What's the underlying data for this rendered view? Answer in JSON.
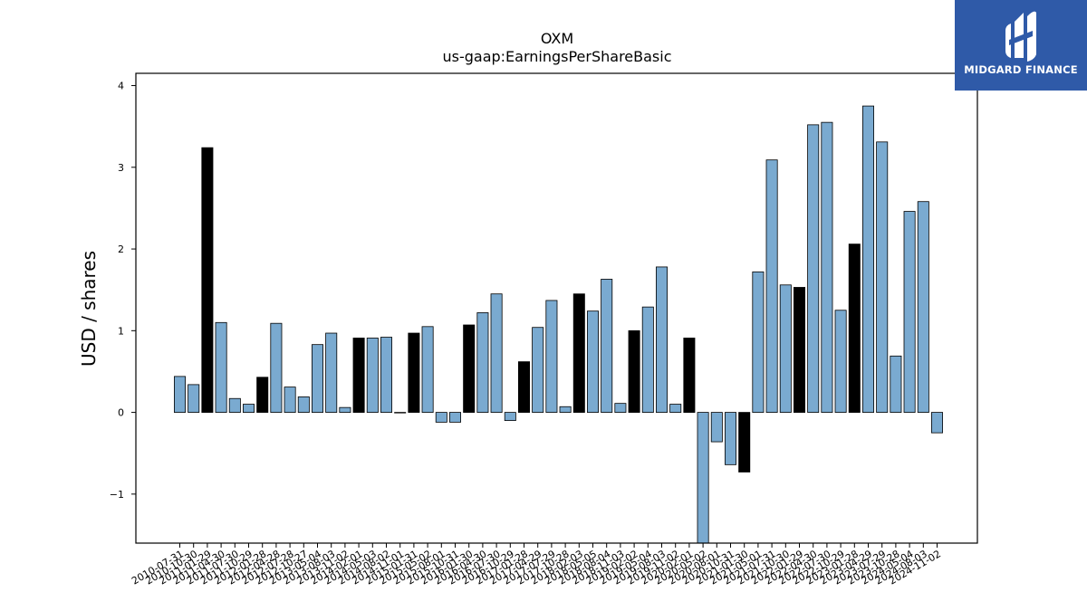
{
  "chart_data": {
    "type": "bar",
    "title": "OXM",
    "subtitle": "us-gaap:EarningsPerShareBasic",
    "ylabel": "USD / shares",
    "xlabel": "",
    "ylim": [
      -1.6,
      4.15
    ],
    "yticks": [
      -1,
      0,
      1,
      2,
      3,
      4
    ],
    "grid": false,
    "colors": {
      "quarter": "#7aaad0",
      "annual": "#000000",
      "edge": "#000000"
    },
    "bars": [
      {
        "label": "2010-07-31",
        "value": 0.44,
        "kind": "quarter"
      },
      {
        "label": "2010-10-30",
        "value": 0.34,
        "kind": "quarter"
      },
      {
        "label": "2011-01-29",
        "value": 3.24,
        "kind": "annual"
      },
      {
        "label": "2011-04-30",
        "value": 1.1,
        "kind": "quarter"
      },
      {
        "label": "2011-07-30",
        "value": 0.17,
        "kind": "quarter"
      },
      {
        "label": "2011-10-29",
        "value": 0.1,
        "kind": "quarter"
      },
      {
        "label": "2012-01-28",
        "value": 0.43,
        "kind": "annual"
      },
      {
        "label": "2012-04-28",
        "value": 1.09,
        "kind": "quarter"
      },
      {
        "label": "2012-07-28",
        "value": 0.31,
        "kind": "quarter"
      },
      {
        "label": "2012-10-27",
        "value": 0.19,
        "kind": "quarter"
      },
      {
        "label": "2013-05-04",
        "value": 0.83,
        "kind": "quarter"
      },
      {
        "label": "2013-08-03",
        "value": 0.97,
        "kind": "quarter"
      },
      {
        "label": "2013-11-02",
        "value": 0.06,
        "kind": "quarter"
      },
      {
        "label": "2014-02-01",
        "value": 0.91,
        "kind": "annual"
      },
      {
        "label": "2014-05-03",
        "value": 0.91,
        "kind": "quarter"
      },
      {
        "label": "2014-08-02",
        "value": 0.92,
        "kind": "quarter"
      },
      {
        "label": "2014-11-01",
        "value": 0.0,
        "kind": "annual"
      },
      {
        "label": "2015-01-31",
        "value": 0.97,
        "kind": "annual"
      },
      {
        "label": "2015-05-02",
        "value": 1.05,
        "kind": "quarter"
      },
      {
        "label": "2015-08-01",
        "value": -0.12,
        "kind": "quarter"
      },
      {
        "label": "2015-10-31",
        "value": -0.12,
        "kind": "quarter"
      },
      {
        "label": "2016-01-30",
        "value": 1.07,
        "kind": "annual"
      },
      {
        "label": "2016-04-30",
        "value": 1.22,
        "kind": "quarter"
      },
      {
        "label": "2016-07-30",
        "value": 1.45,
        "kind": "quarter"
      },
      {
        "label": "2016-10-29",
        "value": -0.1,
        "kind": "quarter"
      },
      {
        "label": "2017-01-28",
        "value": 0.62,
        "kind": "annual"
      },
      {
        "label": "2017-04-29",
        "value": 1.04,
        "kind": "quarter"
      },
      {
        "label": "2017-07-29",
        "value": 1.37,
        "kind": "quarter"
      },
      {
        "label": "2017-10-28",
        "value": 0.07,
        "kind": "quarter"
      },
      {
        "label": "2018-02-03",
        "value": 1.45,
        "kind": "annual"
      },
      {
        "label": "2018-05-05",
        "value": 1.24,
        "kind": "quarter"
      },
      {
        "label": "2018-08-04",
        "value": 1.63,
        "kind": "quarter"
      },
      {
        "label": "2018-11-03",
        "value": 0.11,
        "kind": "quarter"
      },
      {
        "label": "2019-02-02",
        "value": 1.0,
        "kind": "annual"
      },
      {
        "label": "2019-05-04",
        "value": 1.29,
        "kind": "quarter"
      },
      {
        "label": "2019-08-03",
        "value": 1.78,
        "kind": "quarter"
      },
      {
        "label": "2019-11-02",
        "value": 0.1,
        "kind": "quarter"
      },
      {
        "label": "2020-02-01",
        "value": 0.91,
        "kind": "annual"
      },
      {
        "label": "2020-05-02",
        "value": -1.6,
        "kind": "quarter"
      },
      {
        "label": "2020-08-01",
        "value": -0.36,
        "kind": "quarter"
      },
      {
        "label": "2020-10-31",
        "value": -0.64,
        "kind": "quarter"
      },
      {
        "label": "2021-01-30",
        "value": -0.73,
        "kind": "annual"
      },
      {
        "label": "2021-05-01",
        "value": 1.72,
        "kind": "quarter"
      },
      {
        "label": "2021-07-31",
        "value": 3.09,
        "kind": "quarter"
      },
      {
        "label": "2021-10-30",
        "value": 1.56,
        "kind": "quarter"
      },
      {
        "label": "2022-01-29",
        "value": 1.53,
        "kind": "annual"
      },
      {
        "label": "2022-04-30",
        "value": 3.52,
        "kind": "quarter"
      },
      {
        "label": "2022-07-30",
        "value": 3.55,
        "kind": "quarter"
      },
      {
        "label": "2022-10-29",
        "value": 1.25,
        "kind": "quarter"
      },
      {
        "label": "2023-01-28",
        "value": 2.06,
        "kind": "annual"
      },
      {
        "label": "2023-04-29",
        "value": 3.75,
        "kind": "quarter"
      },
      {
        "label": "2023-07-29",
        "value": 3.31,
        "kind": "quarter"
      },
      {
        "label": "2023-10-28",
        "value": 0.69,
        "kind": "quarter"
      },
      {
        "label": "2024-05-04",
        "value": 2.46,
        "kind": "quarter"
      },
      {
        "label": "2024-08-03",
        "value": 2.58,
        "kind": "quarter"
      },
      {
        "label": "2024-11-02",
        "value": -0.25,
        "kind": "quarter"
      }
    ]
  },
  "logo": {
    "text": "MIDGARD FINANCE",
    "icon": "midgard-logo-icon",
    "background": "#2f5aa8"
  }
}
